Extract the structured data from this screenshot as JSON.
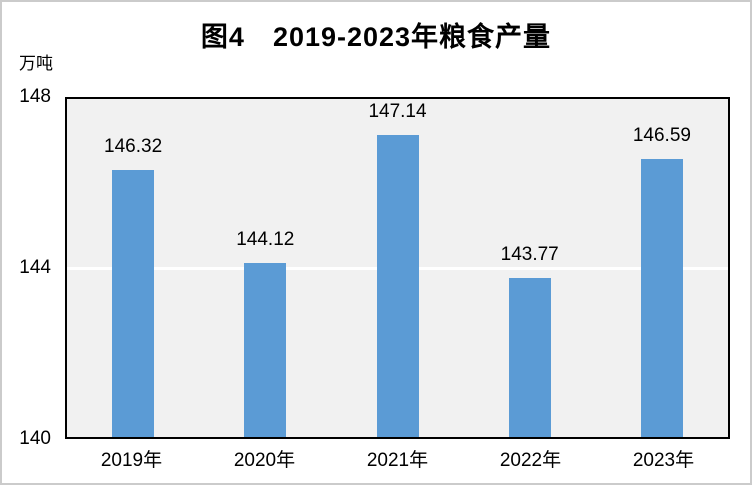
{
  "title": "图4　2019-2023年粮食产量",
  "unit_label": "万吨",
  "colors": {
    "bar": "#5B9BD5",
    "plot_background": "#F1F1F1",
    "plot_border": "#000000",
    "gridline": "#FFFFFF",
    "text": "#000000",
    "frame_border": "#CBCBCB"
  },
  "chart_data": {
    "type": "bar",
    "title": "图4　2019-2023年粮食产量",
    "categories": [
      "2019年",
      "2020年",
      "2021年",
      "2022年",
      "2023年"
    ],
    "values": [
      146.32,
      144.12,
      147.14,
      143.77,
      146.59
    ],
    "data_labels": [
      "146.32",
      "144.12",
      "147.14",
      "143.77",
      "146.59"
    ],
    "xlabel": "",
    "ylabel": "万吨",
    "ylim": [
      140,
      148
    ],
    "yticks": [
      "148",
      "144",
      "140"
    ],
    "gridlines_at": [
      144
    ],
    "grid": "major-horizontal",
    "legend_position": "none"
  }
}
